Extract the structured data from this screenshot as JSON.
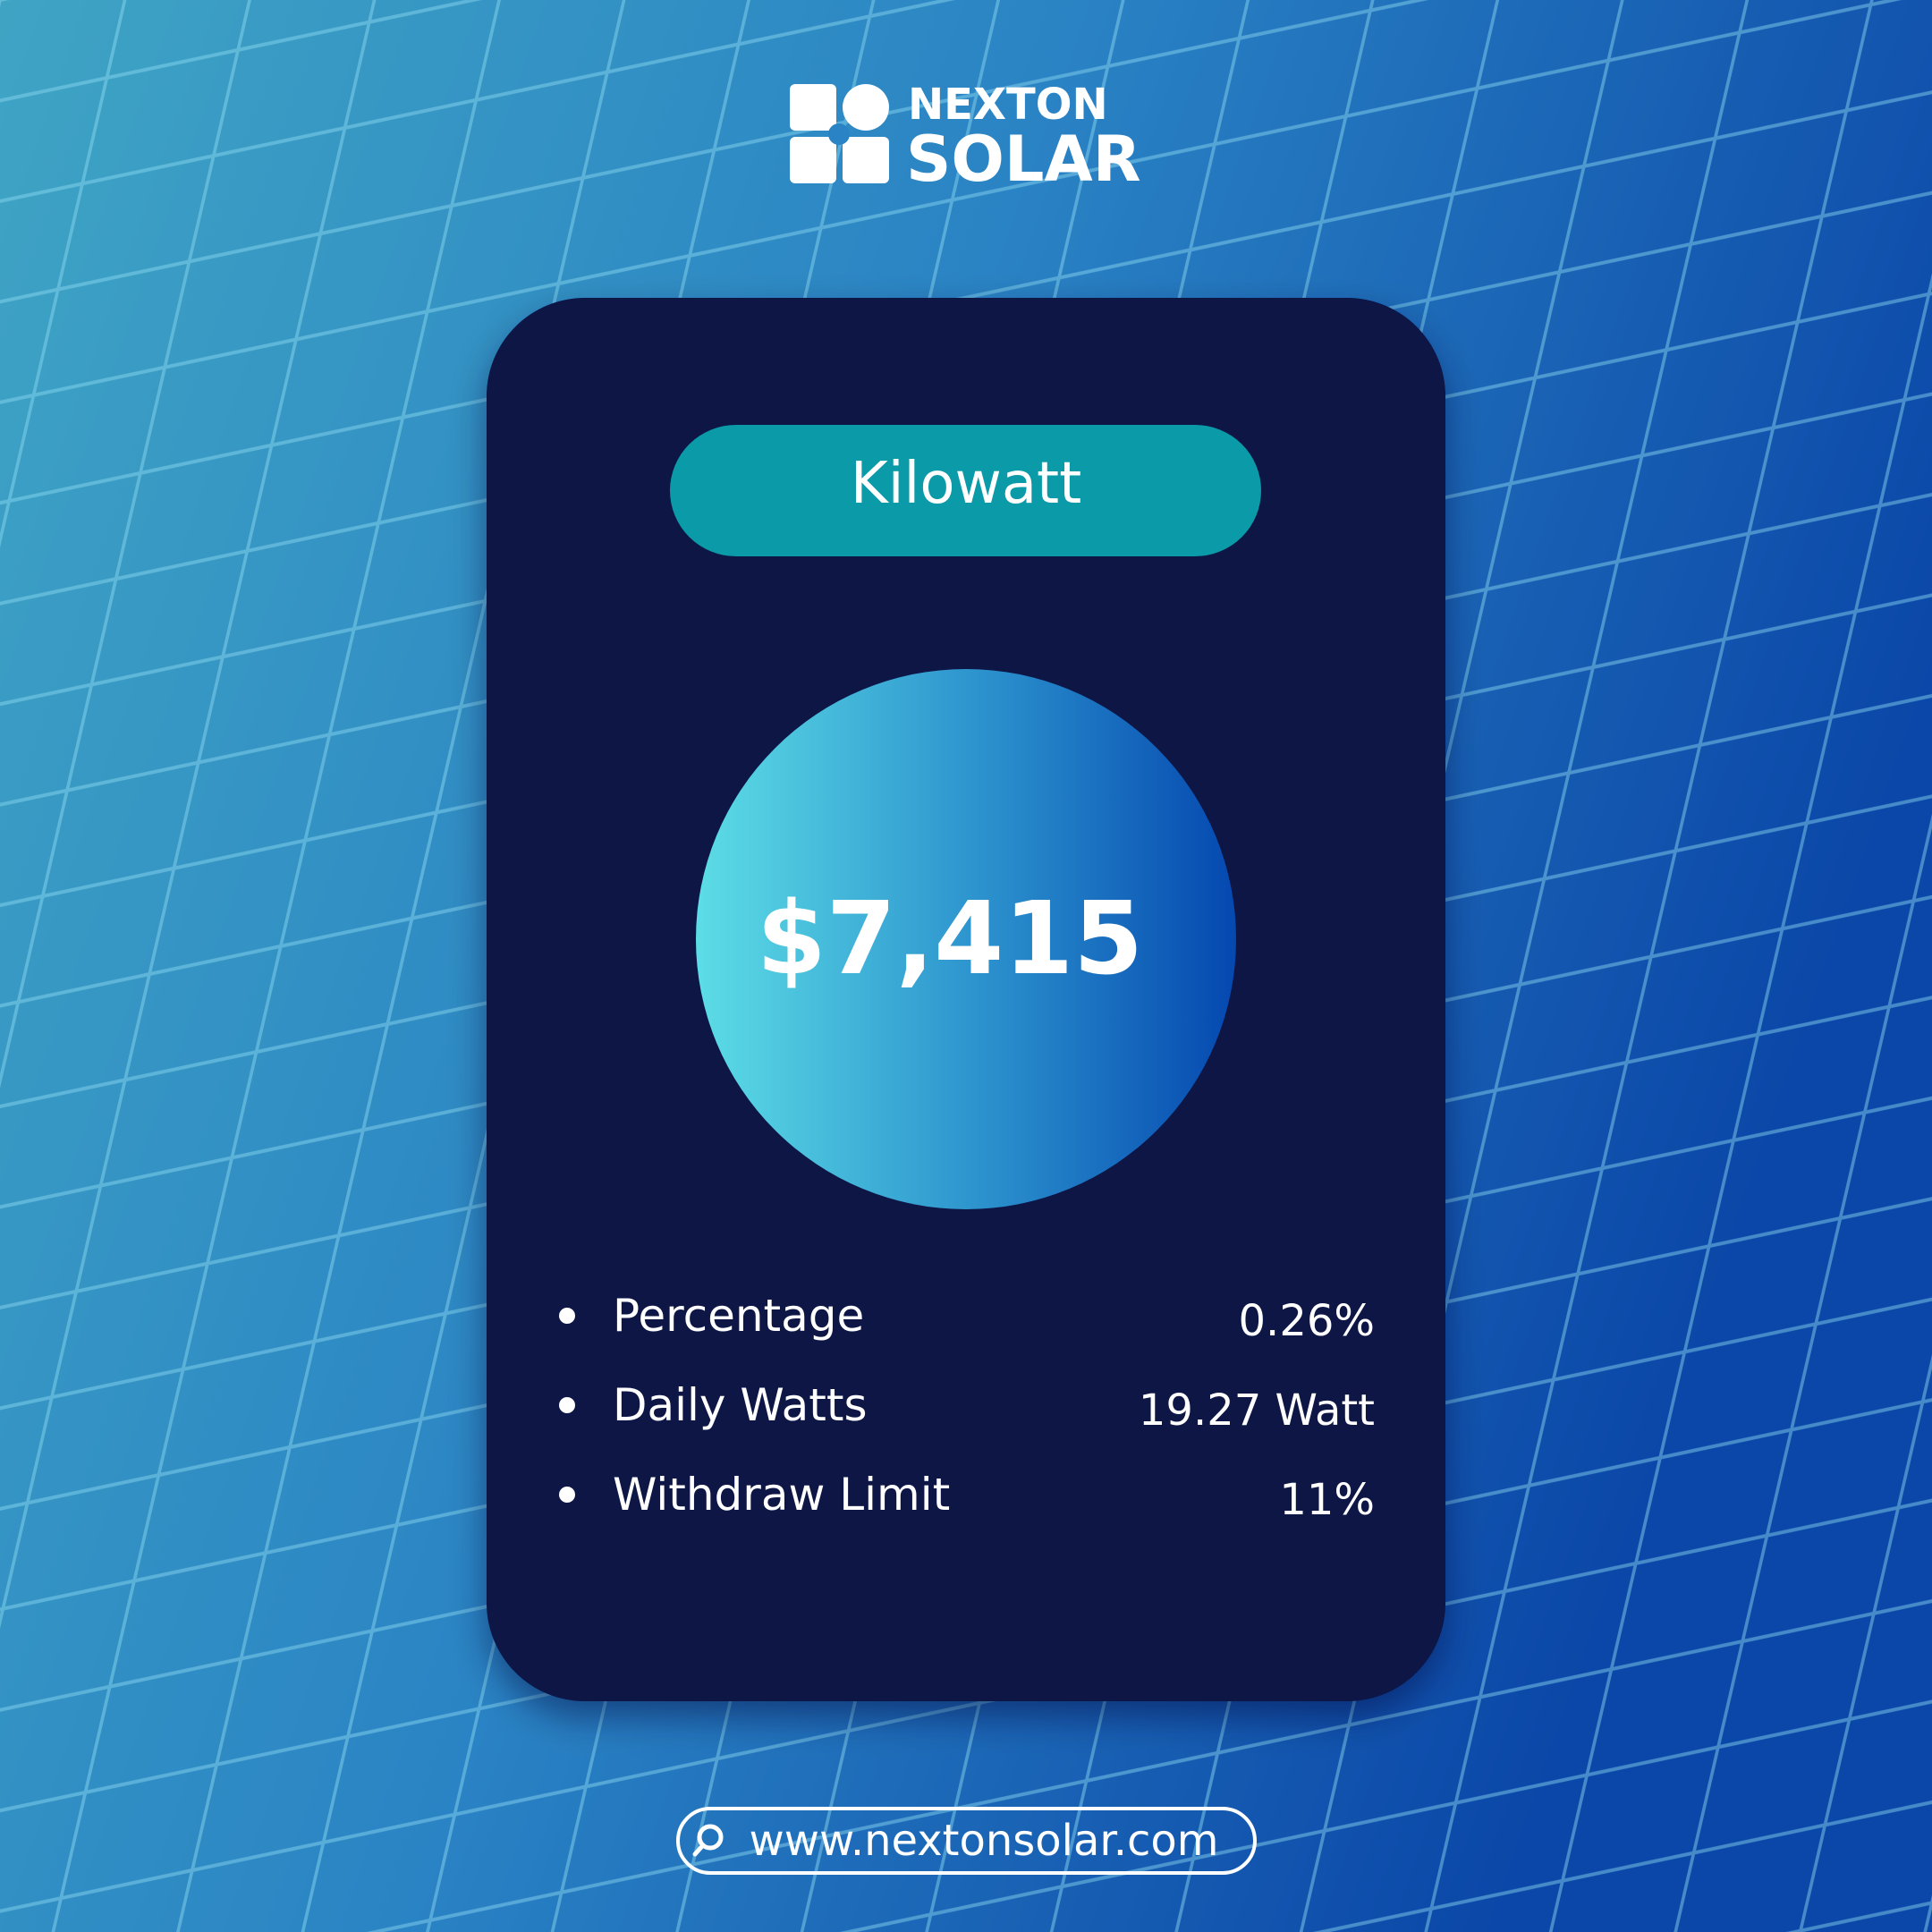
{
  "header": {
    "brand_line1": "NEXTON",
    "brand_line2": "SOLAR"
  },
  "card": {
    "title": "Kilowatt",
    "amount": "$7,415",
    "items": [
      {
        "label": "Percentage",
        "value": "0.26%"
      },
      {
        "label": "Daily Watts",
        "value": "19.27 Watt"
      },
      {
        "label": "Withdraw Limit",
        "value": "11%"
      }
    ]
  },
  "footer": {
    "url": "www.nextonsolar.com"
  }
}
